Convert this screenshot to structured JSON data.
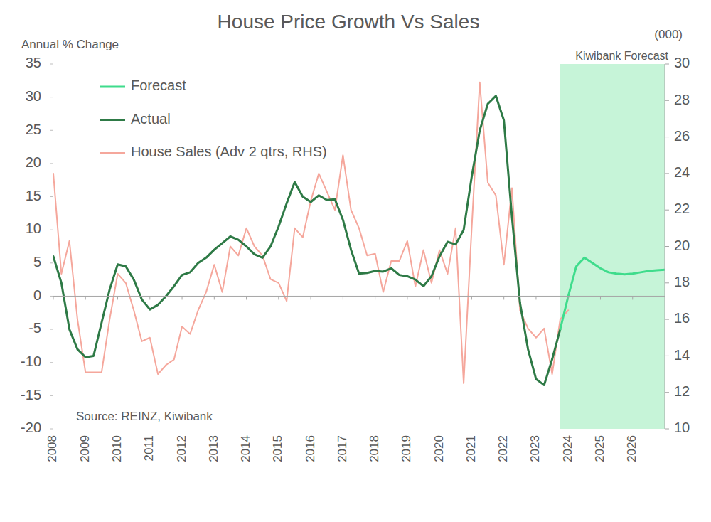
{
  "chart_data": {
    "type": "line",
    "title": "House Price Growth Vs Sales",
    "ylabel": "Annual % Change",
    "y2label": "(000)",
    "source": "Source: REINZ, Kiwibank",
    "shaded_region": {
      "label": "Kiwibank Forecast",
      "x": [
        2023.75,
        2027
      ]
    },
    "x": [
      2008,
      2008.25,
      2008.5,
      2008.75,
      2009,
      2009.25,
      2009.5,
      2009.75,
      2010,
      2010.25,
      2010.5,
      2010.75,
      2011,
      2011.25,
      2011.5,
      2011.75,
      2012,
      2012.25,
      2012.5,
      2012.75,
      2013,
      2013.25,
      2013.5,
      2013.75,
      2014,
      2014.25,
      2014.5,
      2014.75,
      2015,
      2015.25,
      2015.5,
      2015.75,
      2016,
      2016.25,
      2016.5,
      2016.75,
      2017,
      2017.25,
      2017.5,
      2017.75,
      2018,
      2018.25,
      2018.5,
      2018.75,
      2019,
      2019.25,
      2019.5,
      2019.75,
      2020,
      2020.25,
      2020.5,
      2020.75,
      2021,
      2021.25,
      2021.5,
      2021.75,
      2022,
      2022.25,
      2022.5,
      2022.75,
      2023,
      2023.25,
      2023.5,
      2023.75,
      2024,
      2024.25,
      2024.5,
      2024.75,
      2025,
      2025.25,
      2025.5,
      2025.75,
      2026,
      2026.25,
      2026.5,
      2026.75,
      2027
    ],
    "series": [
      {
        "name": "Forecast",
        "color": "#3fdc8c",
        "values": [
          null,
          null,
          null,
          null,
          null,
          null,
          null,
          null,
          null,
          null,
          null,
          null,
          null,
          null,
          null,
          null,
          null,
          null,
          null,
          null,
          null,
          null,
          null,
          null,
          null,
          null,
          null,
          null,
          null,
          null,
          null,
          null,
          null,
          null,
          null,
          null,
          null,
          null,
          null,
          null,
          null,
          null,
          null,
          null,
          null,
          null,
          null,
          null,
          null,
          null,
          null,
          null,
          null,
          null,
          null,
          null,
          null,
          null,
          null,
          null,
          null,
          null,
          null,
          -5,
          0,
          4.5,
          5.8,
          5,
          4.2,
          3.6,
          3.4,
          3.3,
          3.4,
          3.6,
          3.8,
          3.9,
          4.0
        ]
      },
      {
        "name": "Actual",
        "color": "#2e7a46",
        "values": [
          6,
          2,
          -5,
          -8,
          -9.2,
          -9,
          -4,
          1,
          4.8,
          4.5,
          2.5,
          -0.5,
          -2,
          -1.3,
          0,
          1.5,
          3.2,
          3.6,
          5,
          5.8,
          7,
          8,
          9,
          8.5,
          7.5,
          6.3,
          5.8,
          7.5,
          10.5,
          14,
          17.2,
          15,
          14.2,
          15.2,
          14.5,
          14.6,
          11.5,
          7,
          3.4,
          3.5,
          3.8,
          3.7,
          4.2,
          3.2,
          3,
          2.5,
          1.5,
          3,
          6,
          8.2,
          7.8,
          10,
          18,
          25,
          29,
          30.2,
          26.5,
          12,
          -1,
          -8,
          -12.5,
          -13.4,
          -9.5,
          -5,
          null,
          null,
          null,
          null,
          null,
          null,
          null,
          null,
          null,
          null,
          null,
          null,
          null
        ]
      },
      {
        "name": "House Sales (Adv 2 qtrs, RHS)",
        "color": "#f5a79c",
        "axis": "y2",
        "values": [
          24,
          18.5,
          20.3,
          16,
          13.1,
          13.1,
          13.1,
          16,
          18.5,
          18,
          16.5,
          14.8,
          15,
          13,
          13.5,
          13.8,
          15.6,
          15.2,
          16.5,
          17.5,
          19,
          17.5,
          20,
          19.5,
          21,
          20,
          19.5,
          18.2,
          18,
          17,
          21,
          20.5,
          22.5,
          24,
          23,
          22,
          25,
          22,
          21,
          19.5,
          19.6,
          17.5,
          19.2,
          19.2,
          20.3,
          17.8,
          19.8,
          18,
          19.8,
          18.5,
          21,
          12.5,
          21,
          29,
          23.5,
          22.8,
          19,
          23.2,
          16.5,
          15.5,
          15,
          15.5,
          13,
          16,
          16.5,
          null,
          null,
          null,
          null,
          null,
          null,
          null,
          null,
          null,
          null,
          null,
          null
        ]
      }
    ],
    "xlim": [
      2008,
      2027
    ],
    "xticks": [
      2008,
      2009,
      2010,
      2011,
      2012,
      2013,
      2014,
      2015,
      2016,
      2017,
      2018,
      2019,
      2020,
      2021,
      2022,
      2023,
      2024,
      2025,
      2026
    ],
    "ylim": [
      -20,
      35
    ],
    "yticks": [
      -20,
      -15,
      -10,
      -5,
      0,
      5,
      10,
      15,
      20,
      25,
      30,
      35
    ],
    "y2lim": [
      10,
      30
    ],
    "y2ticks": [
      10,
      12,
      14,
      16,
      18,
      20,
      22,
      24,
      26,
      28,
      30
    ],
    "grid": false,
    "legend": "upper left"
  }
}
